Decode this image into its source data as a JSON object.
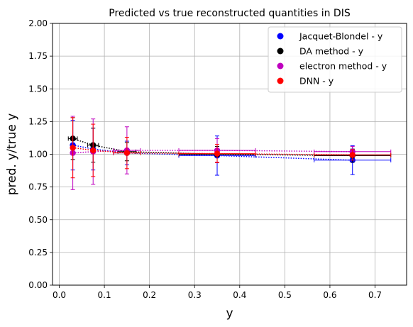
{
  "chart_data": {
    "type": "scatter",
    "title": "Predicted vs true reconstructed quantities in DIS",
    "xlabel": "y",
    "ylabel": "pred. y/true y",
    "xlim": [
      -0.015,
      0.77
    ],
    "ylim": [
      0.0,
      2.0
    ],
    "xticks": [
      "0.0",
      "0.1",
      "0.2",
      "0.3",
      "0.4",
      "0.5",
      "0.6",
      "0.7"
    ],
    "yticks": [
      "0.00",
      "0.25",
      "0.50",
      "0.75",
      "1.00",
      "1.25",
      "1.50",
      "1.75",
      "2.00"
    ],
    "grid": true,
    "legend_position": "top-right",
    "series": [
      {
        "name": "Jacquet-Blondel - y",
        "color": "#0000ff",
        "points": [
          {
            "x": 0.03,
            "y": 1.07,
            "xerr": 0.0,
            "yerr": 0.19
          },
          {
            "x": 0.075,
            "y": 1.04,
            "xerr": 0.0,
            "yerr": 0.16
          },
          {
            "x": 0.15,
            "y": 1.01,
            "xerr": 0.03,
            "yerr": 0.09
          },
          {
            "x": 0.35,
            "y": 0.99,
            "xerr": 0.085,
            "yerr": 0.15
          },
          {
            "x": 0.65,
            "y": 0.955,
            "xerr": 0.085,
            "yerr": 0.11
          }
        ]
      },
      {
        "name": "DA method - y",
        "color": "#000000",
        "points": [
          {
            "x": 0.03,
            "y": 1.12,
            "xerr": 0.01,
            "yerr": 0.16
          },
          {
            "x": 0.075,
            "y": 1.07,
            "xerr": 0.012,
            "yerr": 0.13
          },
          {
            "x": 0.15,
            "y": 1.02,
            "xerr": 0.02,
            "yerr": 0.07
          },
          {
            "x": 0.35,
            "y": 1.0,
            "xerr": 0.085,
            "yerr": 0.06
          },
          {
            "x": 0.65,
            "y": 0.99,
            "xerr": 0.085,
            "yerr": 0.05
          }
        ]
      },
      {
        "name": "electron method - y",
        "color": "#bf00bf",
        "points": [
          {
            "x": 0.03,
            "y": 1.01,
            "xerr": 0.0,
            "yerr": 0.28
          },
          {
            "x": 0.075,
            "y": 1.02,
            "xerr": 0.0,
            "yerr": 0.25
          },
          {
            "x": 0.15,
            "y": 1.03,
            "xerr": 0.03,
            "yerr": 0.18
          },
          {
            "x": 0.35,
            "y": 1.03,
            "xerr": 0.085,
            "yerr": 0.09
          },
          {
            "x": 0.65,
            "y": 1.02,
            "xerr": 0.085,
            "yerr": 0.04
          }
        ]
      },
      {
        "name": "DNN - y",
        "color": "#ff0000",
        "points": [
          {
            "x": 0.03,
            "y": 1.05,
            "xerr": 0.0,
            "yerr": 0.23
          },
          {
            "x": 0.075,
            "y": 1.03,
            "xerr": 0.0,
            "yerr": 0.2
          },
          {
            "x": 0.15,
            "y": 1.01,
            "xerr": 0.03,
            "yerr": 0.12
          },
          {
            "x": 0.35,
            "y": 1.005,
            "xerr": 0.085,
            "yerr": 0.07
          },
          {
            "x": 0.65,
            "y": 0.995,
            "xerr": 0.085,
            "yerr": 0.04
          }
        ]
      }
    ]
  }
}
